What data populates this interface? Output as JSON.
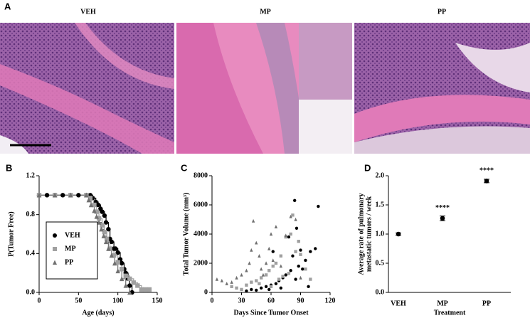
{
  "panel_a": {
    "label": "A",
    "images": [
      {
        "title": "VEH"
      },
      {
        "title": "MP"
      },
      {
        "title": "PP"
      }
    ]
  },
  "chart_data": [
    {
      "type": "survival",
      "label": "B",
      "ylabel": "P(Tumor Free)",
      "xlabel": "Age (days)",
      "xlim": [
        0,
        150
      ],
      "xticks": [
        0,
        50,
        100,
        150
      ],
      "ylim": [
        0,
        1.2
      ],
      "yticks": [
        {
          "value": 0,
          "label": "0.0"
        },
        {
          "value": 0.4,
          "label": "0.4"
        },
        {
          "value": 0.8,
          "label": "0.8"
        },
        {
          "value": 1.2,
          "label": "1.2"
        }
      ],
      "series": [
        {
          "name": "VEH",
          "color": "#000000",
          "marker": "circle",
          "x": [
            0,
            10,
            20,
            30,
            40,
            50,
            60,
            65,
            68,
            72,
            75,
            78,
            80,
            83,
            85,
            88,
            90,
            92,
            95,
            97,
            100,
            103,
            105,
            108,
            110,
            113,
            115,
            118
          ],
          "values": [
            1,
            1,
            1,
            1,
            1,
            1,
            1,
            1,
            0.97,
            0.93,
            0.9,
            0.86,
            0.83,
            0.79,
            0.72,
            0.65,
            0.55,
            0.52,
            0.45,
            0.45,
            0.41,
            0.34,
            0.3,
            0.24,
            0.2,
            0.14,
            0.07,
            0
          ]
        },
        {
          "name": "MP",
          "color": "#a0a0a0",
          "marker": "square",
          "x": [
            0,
            20,
            40,
            60,
            65,
            70,
            73,
            76,
            80,
            83,
            86,
            90,
            95,
            100,
            105,
            110,
            115,
            120,
            125,
            130,
            135,
            140
          ],
          "values": [
            1,
            1,
            1,
            1,
            0.97,
            0.9,
            0.83,
            0.76,
            0.69,
            0.62,
            0.55,
            0.45,
            0.38,
            0.31,
            0.24,
            0.17,
            0.14,
            0.1,
            0.07,
            0.03,
            0.03,
            0.03
          ]
        },
        {
          "name": "PP",
          "color": "#707070",
          "marker": "triangle",
          "x": [
            0,
            20,
            40,
            60,
            63,
            66,
            70,
            73,
            76,
            79,
            82,
            85,
            88,
            92,
            96,
            100,
            105,
            110,
            115
          ],
          "values": [
            1,
            1,
            1,
            1,
            0.95,
            0.9,
            0.84,
            0.78,
            0.72,
            0.65,
            0.58,
            0.52,
            0.45,
            0.38,
            0.3,
            0.22,
            0.14,
            0.07,
            0
          ]
        }
      ]
    },
    {
      "type": "scatter",
      "label": "C",
      "ylabel": "Total Tumor Volume (mm³)",
      "xlabel": "Days Since Tumor Onset",
      "xlim": [
        0,
        120
      ],
      "xticks": [
        0,
        30,
        60,
        90,
        120
      ],
      "ylim": [
        0,
        8000
      ],
      "yticks": [
        0,
        2000,
        4000,
        6000,
        8000
      ],
      "series": [
        {
          "name": "VEH",
          "color": "#000000",
          "marker": "circle",
          "x": [
            35,
            40,
            45,
            50,
            55,
            58,
            60,
            62,
            65,
            68,
            70,
            72,
            75,
            78,
            80,
            82,
            84,
            85,
            86,
            88,
            90,
            92,
            95,
            98,
            100,
            105,
            108
          ],
          "values": [
            100,
            200,
            150,
            300,
            400,
            200,
            500,
            2800,
            600,
            800,
            300,
            1000,
            1200,
            3800,
            1500,
            2500,
            6300,
            900,
            4400,
            1800,
            2900,
            1600,
            2200,
            400,
            2800,
            3000,
            5900
          ]
        },
        {
          "name": "MP",
          "color": "#a0a0a0",
          "marker": "square",
          "x": [
            20,
            25,
            30,
            35,
            40,
            45,
            48,
            50,
            55,
            58,
            60,
            62,
            65,
            68,
            70,
            72,
            75,
            78,
            80,
            82,
            85,
            88,
            90,
            95,
            100
          ],
          "values": [
            400,
            300,
            200,
            500,
            700,
            800,
            600,
            1000,
            1200,
            1500,
            400,
            1800,
            2000,
            900,
            2500,
            1100,
            3800,
            1300,
            4000,
            5300,
            2800,
            3500,
            2600,
            1600,
            900
          ]
        },
        {
          "name": "PP",
          "color": "#707070",
          "marker": "triangle",
          "x": [
            5,
            10,
            15,
            20,
            25,
            30,
            35,
            38,
            40,
            42,
            45,
            48,
            50,
            52,
            55,
            58,
            60,
            62,
            65,
            70,
            75,
            80,
            85,
            90
          ],
          "values": [
            900,
            800,
            600,
            700,
            1000,
            1200,
            1500,
            2000,
            2900,
            4900,
            3400,
            2500,
            1600,
            1200,
            2000,
            3000,
            4000,
            2200,
            4500,
            1800,
            3900,
            5200,
            5000,
            1000
          ]
        }
      ]
    },
    {
      "type": "dot",
      "label": "D",
      "ylabel": [
        "Average rate of pulmonary",
        "metastatic tumors / week"
      ],
      "xlabel": "Treatment",
      "categories": [
        "VEH",
        "MP",
        "PP"
      ],
      "values": [
        1.0,
        1.27,
        1.91
      ],
      "errors": [
        0.02,
        0.04,
        0.03
      ],
      "annotations": [
        null,
        "****",
        "****"
      ],
      "color": "#000000",
      "ylim": [
        0,
        2
      ],
      "yticks": [
        {
          "value": 0,
          "label": "0.0"
        },
        0.5,
        {
          "value": 1,
          "label": "1.0"
        },
        1.5,
        {
          "value": 2,
          "label": "2.0"
        }
      ]
    }
  ]
}
